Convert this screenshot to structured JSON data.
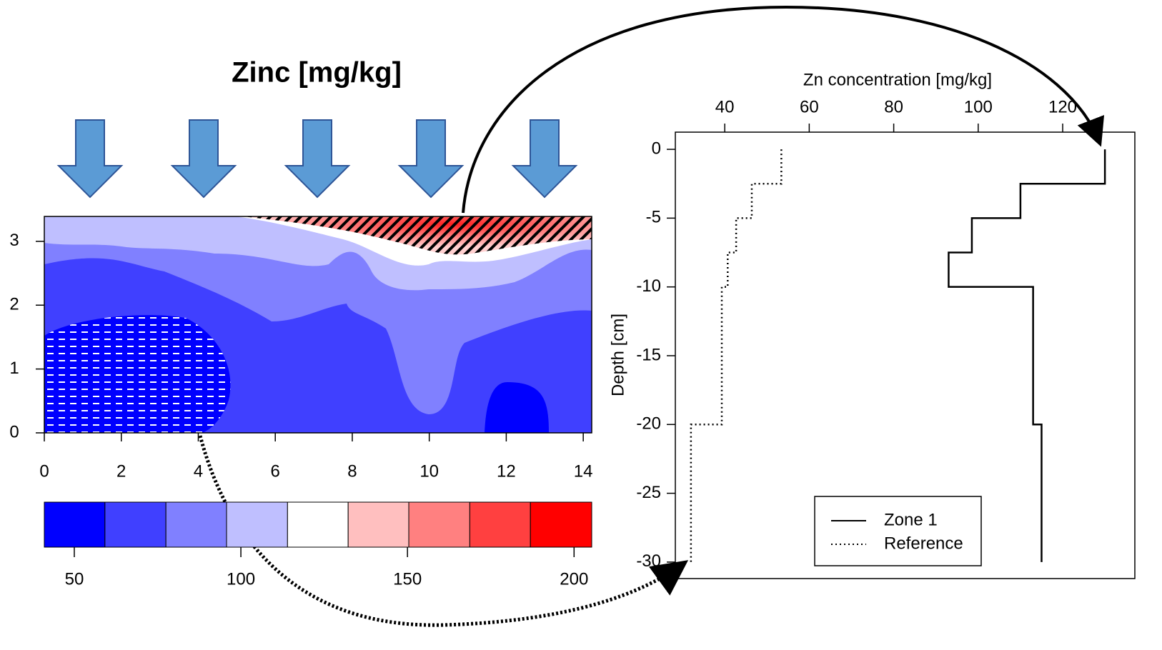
{
  "chart_data": [
    {
      "type": "contour",
      "title": "Zinc [mg/kg]",
      "xlim": [
        0,
        14.22
      ],
      "ylim": [
        0,
        3.39
      ],
      "xticks": [
        0,
        2,
        4,
        6,
        8,
        10,
        12,
        14
      ],
      "yticks": [
        0,
        1,
        2,
        3
      ],
      "colorbar": {
        "bins": [
          41,
          59.2,
          77.5,
          95.7,
          114,
          132.2,
          150.4,
          168.7,
          186.9,
          205.3
        ],
        "colors": [
          "#0000ff",
          "#4040ff",
          "#8080ff",
          "#bfbfff",
          "#ffffff",
          "#ffbfbf",
          "#ff8080",
          "#ff4040",
          "#ff0000"
        ],
        "ticks": [
          50,
          100,
          150,
          200
        ]
      }
    },
    {
      "type": "line",
      "xlabel": "Zn concentration [mg/kg]",
      "ylabel": "Depth [cm]",
      "xlim": [
        28.3,
        133.7
      ],
      "ylim": [
        -31.2,
        1.25
      ],
      "xticks": [
        40,
        60,
        80,
        100,
        120
      ],
      "yticks": [
        0,
        -5,
        -10,
        -15,
        -20,
        -25,
        -30
      ],
      "legend": "bottom-right",
      "series": [
        {
          "name": "Zone 1",
          "color": "#000000",
          "dash": "solid",
          "values": [
            130,
            130,
            110,
            110,
            98.5,
            98.5,
            93,
            93,
            113,
            113,
            115,
            115
          ],
          "depth": [
            0,
            -2.5,
            -2.5,
            -5,
            -5,
            -7.5,
            -7.5,
            -10,
            -10,
            -20,
            -20,
            -30
          ]
        },
        {
          "name": "Reference",
          "color": "#000000",
          "dash": "dotted",
          "values": [
            53.4,
            53.4,
            46.4,
            46.4,
            42.7,
            42.7,
            40.7,
            40.7,
            39.3,
            39.3,
            32,
            32
          ],
          "depth": [
            0,
            -2.5,
            -2.5,
            -5,
            -5,
            -7.5,
            -7.5,
            -10,
            -10,
            -20,
            -20,
            -30
          ]
        }
      ]
    }
  ]
}
